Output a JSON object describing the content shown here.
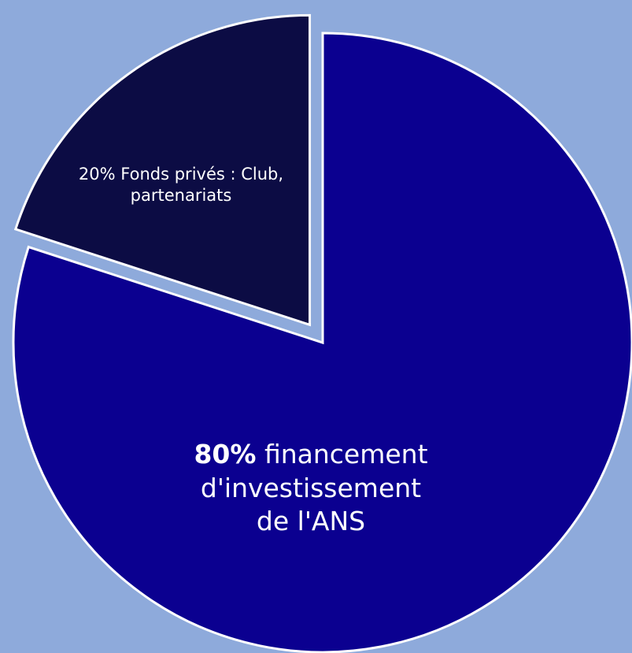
{
  "chart_data": {
    "type": "pie",
    "categories": [
      "financement d'investissement de l'ANS",
      "Fonds privés : Club, partenariats"
    ],
    "values": [
      80,
      20
    ],
    "value_labels": [
      "80%",
      "20%"
    ],
    "colors": [
      "#0b0090",
      "#0c0c44"
    ],
    "background": "#8eaadb"
  }
}
